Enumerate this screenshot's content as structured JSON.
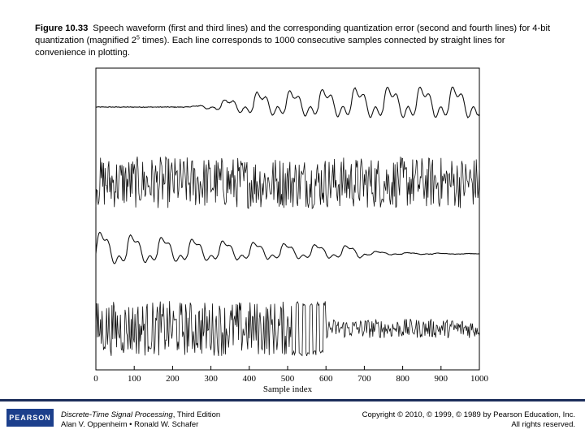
{
  "caption": {
    "label": "Figure 10.33",
    "text_before_sup": "Speech waveform (first and third lines) and the corresponding quantization error (second and fourth lines) for 4-bit quantization (magnified 2",
    "sup": "5",
    "text_after_sup": " times). Each line corresponds to 1000 consecutive samples connected by straight lines for convenience in plotting."
  },
  "chart_data": {
    "type": "line",
    "title": "",
    "xlabel": "Sample index",
    "ylabel": "",
    "xlim": [
      0,
      1000
    ],
    "xticks": [
      0,
      100,
      200,
      300,
      400,
      500,
      600,
      700,
      800,
      900,
      1000
    ],
    "grid": false,
    "legend": "none",
    "series": [
      {
        "name": "Speech waveform (line 1)",
        "kind": "speech",
        "description": "silence to ~240, then quasi-periodic voiced speech with growing amplitude"
      },
      {
        "name": "Quantization error x2^5 (line 2)",
        "kind": "noise",
        "description": "noise-like error, full amplitude over all 1000 samples"
      },
      {
        "name": "Speech waveform (line 3)",
        "kind": "speech",
        "description": "voiced speech decaying toward silence after ~700"
      },
      {
        "name": "Quantization error x2^5 (line 4)",
        "kind": "noise",
        "description": "noise-like error, nearly square-wave segment near 510-600, smaller after 600"
      }
    ]
  },
  "footer": {
    "logo": "PEARSON",
    "book_title": "Discrete-Time Signal Processing",
    "book_edition": ", Third Edition",
    "authors": "Alan V. Oppenheim • Ronald W. Schafer",
    "copyright": "Copyright © 2010, © 1999, © 1989 by Pearson Education, Inc.",
    "rights": "All rights reserved."
  }
}
